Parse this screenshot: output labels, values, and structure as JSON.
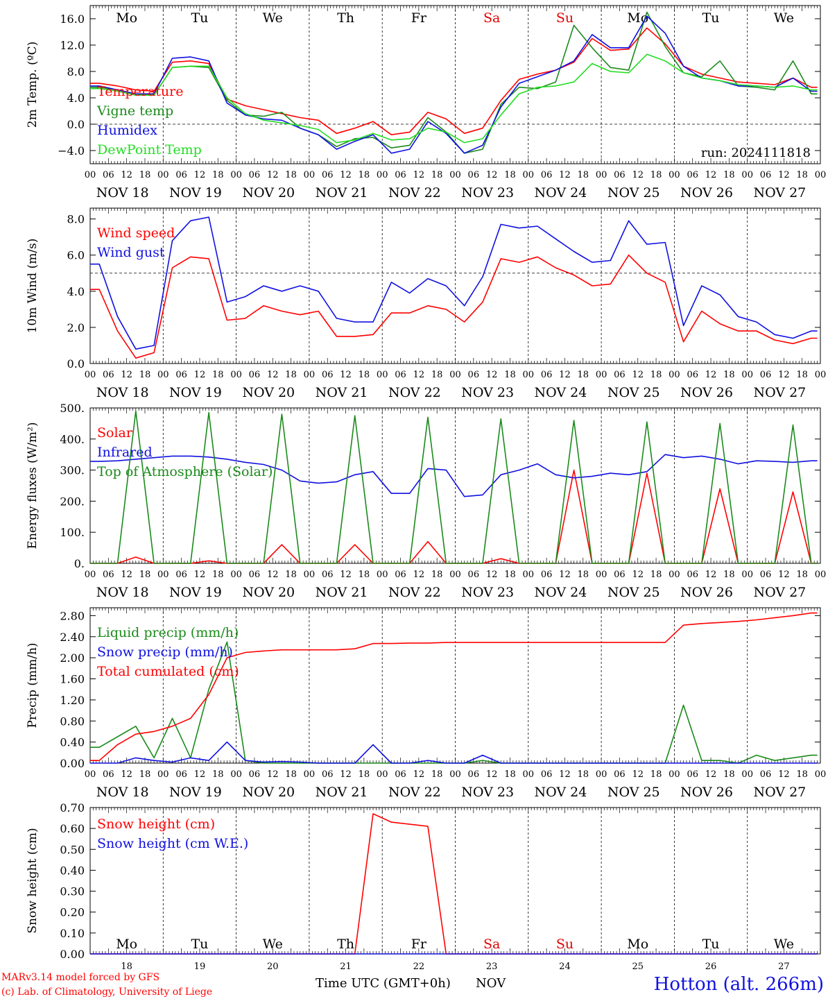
{
  "footer": {
    "model": "MARv3.14 model forced by GFS",
    "credit": "(c) Lab. of Climatology, University of Liege",
    "xlabel": "Time UTC (GMT+0h)",
    "month": "NOV",
    "station": "Hotton (alt. 266m)"
  },
  "run_label": "run: 2024111818",
  "days": [
    "NOV 18",
    "NOV 19",
    "NOV 20",
    "NOV 21",
    "NOV 22",
    "NOV 23",
    "NOV 24",
    "NOV 25",
    "NOV 26",
    "NOV 27"
  ],
  "day_numbers": [
    "18",
    "19",
    "20",
    "21",
    "22",
    "23",
    "24",
    "25",
    "26",
    "27"
  ],
  "weekdays": [
    "Mo",
    "Tu",
    "We",
    "Th",
    "Fr",
    "Sa",
    "Su",
    "Mo",
    "Tu",
    "We"
  ],
  "weekday_colors": [
    "#000000",
    "#000000",
    "#000000",
    "#000000",
    "#000000",
    "#e00000",
    "#e00000",
    "#000000",
    "#000000",
    "#000000"
  ],
  "hour_ticks": [
    "00",
    "06",
    "12",
    "18"
  ],
  "colors": {
    "red": "#ff0000",
    "green": "#1a8a1a",
    "blue": "#1010e0",
    "lightgreen": "#22dd22",
    "purple": "#800080"
  },
  "chart_data": [
    {
      "type": "line",
      "ylabel": "2m Temp. (ºC)",
      "ylim": [
        -6,
        18
      ],
      "yticks": [
        "−4.0",
        "0.0",
        "4.0",
        "8.0",
        "12.0",
        "16.0"
      ],
      "ytick_values": [
        -4,
        0,
        4,
        8,
        12,
        16
      ],
      "reference_line": 0,
      "x_hours": [
        0,
        6,
        12,
        18,
        24,
        30,
        36,
        42,
        48,
        54,
        60,
        66,
        72,
        78,
        84,
        90,
        96,
        102,
        108,
        114,
        120,
        126,
        132,
        138,
        144,
        150,
        156,
        162,
        168,
        174,
        180,
        186,
        192,
        198,
        204,
        210,
        216,
        222,
        228,
        234
      ],
      "series": [
        {
          "name": "Temperature",
          "color": "#ff0000",
          "values": [
            6.2,
            5.8,
            5.2,
            5.0,
            9.4,
            9.6,
            9.2,
            3.8,
            2.8,
            2.2,
            1.6,
            1.0,
            0.6,
            -1.4,
            -0.6,
            0.4,
            -1.6,
            -1.2,
            1.8,
            0.8,
            -1.4,
            -0.6,
            3.6,
            6.8,
            7.6,
            8.2,
            9.4,
            13.0,
            11.2,
            11.4,
            14.6,
            12.2,
            8.8,
            7.6,
            7.0,
            6.4,
            6.2,
            6.0,
            7.0,
            5.6
          ]
        },
        {
          "name": "Vigne temp",
          "color": "#1a8a1a",
          "values": [
            5.6,
            5.2,
            4.6,
            4.4,
            8.6,
            8.8,
            8.6,
            3.6,
            1.4,
            1.2,
            1.8,
            -0.6,
            -1.6,
            -3.4,
            -2.2,
            -2.0,
            -3.6,
            -3.2,
            1.0,
            -1.2,
            -4.4,
            -3.8,
            3.0,
            5.6,
            5.4,
            6.4,
            15.0,
            11.6,
            8.6,
            8.2,
            17.0,
            11.8,
            7.8,
            7.2,
            9.6,
            5.8,
            5.6,
            5.2,
            9.6,
            4.6
          ]
        },
        {
          "name": "Humidex",
          "color": "#1010e0",
          "values": [
            5.8,
            5.2,
            4.6,
            4.6,
            10.0,
            10.2,
            9.6,
            3.2,
            1.4,
            0.8,
            0.6,
            -0.6,
            -1.6,
            -3.8,
            -2.6,
            -1.6,
            -4.4,
            -3.8,
            0.4,
            -1.4,
            -4.4,
            -3.2,
            2.6,
            6.2,
            7.2,
            8.2,
            9.6,
            13.6,
            11.6,
            11.6,
            16.4,
            13.8,
            8.8,
            7.0,
            6.6,
            5.8,
            5.8,
            5.6,
            7.0,
            5.0
          ]
        },
        {
          "name": "DewPoint Temp",
          "color": "#22dd22",
          "values": [
            5.4,
            5.0,
            4.4,
            4.4,
            8.6,
            8.8,
            8.8,
            4.0,
            1.6,
            0.6,
            0.2,
            -0.2,
            -0.8,
            -2.8,
            -2.4,
            -1.4,
            -2.4,
            -2.2,
            -0.6,
            -1.2,
            -2.8,
            -2.2,
            1.4,
            4.6,
            5.6,
            5.8,
            6.4,
            9.2,
            8.0,
            7.8,
            10.6,
            9.6,
            7.8,
            7.0,
            6.6,
            6.0,
            5.8,
            5.6,
            5.8,
            5.2
          ]
        }
      ]
    },
    {
      "type": "line",
      "ylabel": "10m Wind (m/s)",
      "ylim": [
        0,
        8.6
      ],
      "yticks": [
        "0.0",
        "2.0",
        "4.0",
        "6.0",
        "8.0"
      ],
      "ytick_values": [
        0,
        2,
        4,
        6,
        8
      ],
      "reference_line": 5,
      "x_hours": [
        0,
        6,
        12,
        18,
        24,
        30,
        36,
        42,
        48,
        54,
        60,
        66,
        72,
        78,
        84,
        90,
        96,
        102,
        108,
        114,
        120,
        126,
        132,
        138,
        144,
        150,
        156,
        162,
        168,
        174,
        180,
        186,
        192,
        198,
        204,
        210,
        216,
        222,
        228,
        234
      ],
      "series": [
        {
          "name": "Wind speed",
          "color": "#ff0000",
          "values": [
            4.1,
            1.8,
            0.3,
            0.6,
            5.3,
            5.9,
            5.8,
            2.4,
            2.5,
            3.2,
            2.9,
            2.7,
            2.9,
            1.5,
            1.5,
            1.6,
            2.8,
            2.8,
            3.2,
            3.0,
            2.3,
            3.4,
            5.8,
            5.6,
            5.9,
            5.3,
            4.9,
            4.3,
            4.4,
            6.0,
            5.0,
            4.5,
            1.2,
            2.9,
            2.2,
            1.8,
            1.8,
            1.3,
            1.1,
            1.4
          ]
        },
        {
          "name": "Wind gust",
          "color": "#1010e0",
          "values": [
            5.5,
            2.6,
            0.8,
            1.0,
            6.8,
            7.9,
            8.1,
            3.4,
            3.7,
            4.3,
            4.0,
            4.3,
            4.0,
            2.5,
            2.3,
            2.3,
            4.5,
            3.9,
            4.7,
            4.3,
            3.2,
            4.8,
            7.7,
            7.5,
            7.6,
            6.9,
            6.2,
            5.6,
            5.7,
            7.9,
            6.6,
            6.7,
            2.1,
            4.3,
            3.8,
            2.6,
            2.3,
            1.6,
            1.4,
            1.8
          ]
        }
      ]
    },
    {
      "type": "line",
      "ylabel": "Energy fluxes (W/m²)",
      "ylim": [
        0,
        500
      ],
      "yticks": [
        "0.",
        "100.",
        "200.",
        "300.",
        "400.",
        "500."
      ],
      "ytick_values": [
        0,
        100,
        200,
        300,
        400,
        500
      ],
      "x_hours": [
        0,
        6,
        12,
        18,
        24,
        30,
        36,
        42,
        48,
        54,
        60,
        66,
        72,
        78,
        84,
        90,
        96,
        102,
        108,
        114,
        120,
        126,
        132,
        138,
        144,
        150,
        156,
        162,
        168,
        174,
        180,
        186,
        192,
        198,
        204,
        210,
        216,
        222,
        228,
        234
      ],
      "series": [
        {
          "name": "Solar",
          "color": "#ff0000",
          "values": [
            0,
            0,
            20,
            0,
            0,
            0,
            8,
            0,
            0,
            0,
            60,
            0,
            0,
            0,
            60,
            0,
            0,
            0,
            70,
            0,
            0,
            0,
            15,
            0,
            0,
            0,
            300,
            0,
            0,
            0,
            290,
            0,
            0,
            0,
            240,
            0,
            0,
            0,
            230,
            0
          ]
        },
        {
          "name": "Infrared",
          "color": "#1010e0",
          "values": [
            328,
            330,
            335,
            340,
            345,
            345,
            342,
            335,
            325,
            318,
            300,
            265,
            258,
            262,
            285,
            295,
            225,
            225,
            305,
            300,
            215,
            220,
            285,
            300,
            320,
            285,
            275,
            280,
            290,
            285,
            295,
            350,
            340,
            345,
            335,
            320,
            330,
            328,
            325,
            330
          ]
        },
        {
          "name": "Top of Atmosphere (Solar)",
          "color": "#1a8a1a",
          "values": [
            0,
            0,
            490,
            0,
            0,
            0,
            485,
            0,
            0,
            0,
            480,
            0,
            0,
            0,
            475,
            0,
            0,
            0,
            470,
            0,
            0,
            0,
            465,
            0,
            0,
            0,
            460,
            0,
            0,
            0,
            455,
            0,
            0,
            0,
            450,
            0,
            0,
            0,
            445,
            0
          ]
        }
      ]
    },
    {
      "type": "line",
      "ylabel": "Precip (mm/h)",
      "ylim": [
        0,
        2.95
      ],
      "yticks": [
        "0.00",
        "0.40",
        "0.80",
        "1.20",
        "1.60",
        "2.00",
        "2.40",
        "2.80"
      ],
      "ytick_values": [
        0,
        0.4,
        0.8,
        1.2,
        1.6,
        2.0,
        2.4,
        2.8
      ],
      "x_hours": [
        0,
        6,
        12,
        18,
        24,
        30,
        36,
        42,
        48,
        54,
        60,
        66,
        72,
        78,
        84,
        90,
        96,
        102,
        108,
        114,
        120,
        126,
        132,
        138,
        144,
        150,
        156,
        162,
        168,
        174,
        180,
        186,
        192,
        198,
        204,
        210,
        216,
        222,
        228,
        234
      ],
      "series": [
        {
          "name": "Liquid precip (mm/h)",
          "color": "#1a8a1a",
          "values": [
            0.3,
            0.5,
            0.7,
            0.1,
            0.85,
            0.1,
            1.4,
            2.3,
            0.05,
            0,
            0,
            0,
            0,
            0,
            0,
            0,
            0,
            0,
            0,
            0,
            0,
            0.05,
            0,
            0,
            0,
            0,
            0,
            0,
            0,
            0,
            0,
            0,
            1.1,
            0.05,
            0.05,
            0,
            0.15,
            0.05,
            0.1,
            0.15
          ]
        },
        {
          "name": "Snow precip (mm/h)",
          "color": "#1010e0",
          "values": [
            0,
            0,
            0.1,
            0.05,
            0.02,
            0.1,
            0.05,
            0.4,
            0.05,
            0.02,
            0.03,
            0.02,
            0,
            0,
            0,
            0.35,
            0,
            0,
            0.05,
            0,
            0,
            0.15,
            0,
            0,
            0,
            0,
            0,
            0,
            0,
            0,
            0,
            0,
            0,
            0,
            0,
            0,
            0,
            0,
            0,
            0
          ]
        },
        {
          "name": "Total cumulated (cm)",
          "color": "#ff0000",
          "values": [
            0.05,
            0.35,
            0.55,
            0.6,
            0.7,
            0.85,
            1.3,
            2.0,
            2.1,
            2.13,
            2.15,
            2.15,
            2.15,
            2.15,
            2.17,
            2.27,
            2.27,
            2.28,
            2.28,
            2.29,
            2.29,
            2.29,
            2.29,
            2.29,
            2.29,
            2.29,
            2.29,
            2.29,
            2.29,
            2.29,
            2.29,
            2.29,
            2.62,
            2.65,
            2.67,
            2.69,
            2.72,
            2.76,
            2.8,
            2.85
          ]
        }
      ]
    },
    {
      "type": "line",
      "ylabel": "Snow height (cm)",
      "ylim": [
        0,
        0.7
      ],
      "yticks": [
        "0.00",
        "0.10",
        "0.20",
        "0.30",
        "0.40",
        "0.50",
        "0.60",
        "0.70"
      ],
      "ytick_values": [
        0,
        0.1,
        0.2,
        0.3,
        0.4,
        0.5,
        0.6,
        0.7
      ],
      "x_hours": [
        0,
        6,
        12,
        18,
        24,
        30,
        36,
        42,
        48,
        54,
        60,
        66,
        72,
        78,
        84,
        90,
        96,
        102,
        108,
        114,
        120,
        126,
        132,
        138,
        144,
        150,
        156,
        162,
        168,
        174,
        180,
        186,
        192,
        198,
        204,
        210,
        216,
        222,
        228,
        234
      ],
      "series": [
        {
          "name": "Snow height (cm)",
          "color": "#ff0000",
          "values": [
            0,
            0,
            0,
            0,
            0,
            0,
            0,
            0,
            0,
            0,
            0,
            0,
            0,
            0,
            0,
            0.67,
            0.63,
            0.62,
            0.61,
            0,
            0,
            0,
            0,
            0,
            0,
            0,
            0,
            0,
            0,
            0,
            0,
            0,
            0,
            0,
            0,
            0,
            0,
            0,
            0,
            0
          ]
        },
        {
          "name": "Snow height (cm W.E.)",
          "color": "#1010e0",
          "values": [
            0,
            0,
            0,
            0,
            0,
            0,
            0,
            0,
            0,
            0,
            0,
            0,
            0,
            0,
            0,
            0,
            0,
            0,
            0,
            0,
            0,
            0,
            0,
            0,
            0,
            0,
            0,
            0,
            0,
            0,
            0,
            0,
            0,
            0,
            0,
            0,
            0,
            0,
            0,
            0
          ]
        }
      ]
    }
  ]
}
